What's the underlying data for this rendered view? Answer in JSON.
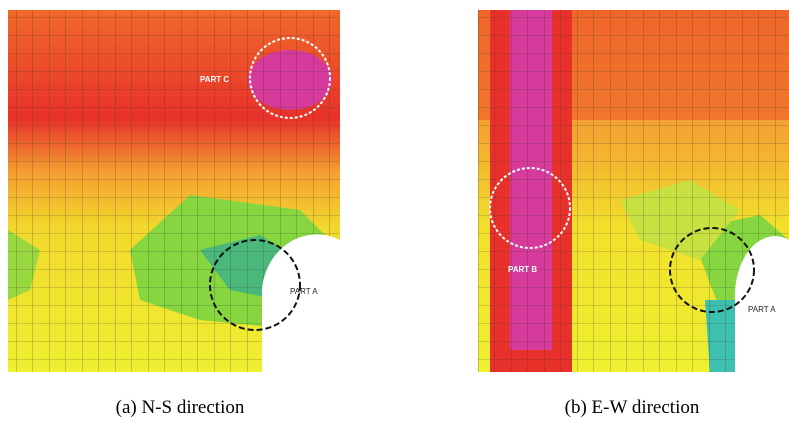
{
  "panels": [
    {
      "caption": "(a) N-S direction",
      "labels": [
        "PART C",
        "PART A"
      ]
    },
    {
      "caption": "(b) E-W direction",
      "labels": [
        "PART B",
        "PART A"
      ]
    }
  ]
}
